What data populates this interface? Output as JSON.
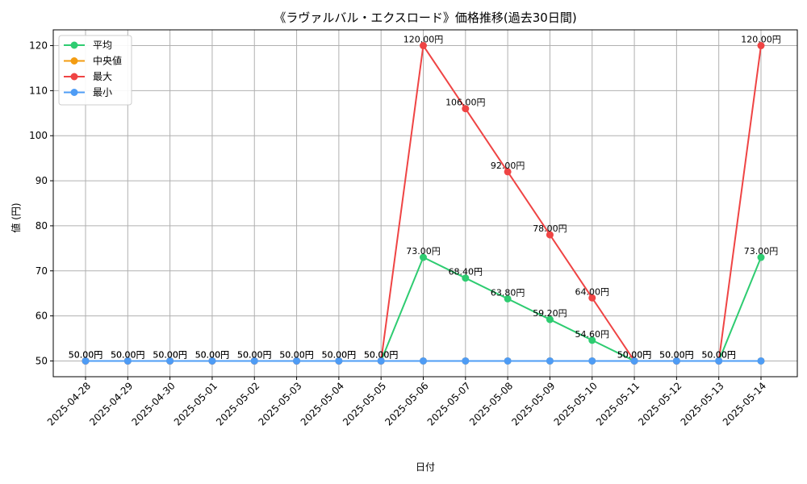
{
  "chart_data": {
    "type": "line",
    "title": "《ラヴァルバル・エクスロード》価格推移(過去30日間)",
    "xlabel": "日付",
    "ylabel": "値 (円)",
    "ylim": [
      46.5,
      123.5
    ],
    "yticks": [
      50,
      60,
      70,
      80,
      90,
      100,
      110,
      120
    ],
    "grid": true,
    "legend_position": "top-left",
    "value_label_suffix": "円",
    "categories": [
      "2025-04-28",
      "2025-04-29",
      "2025-04-30",
      "2025-05-01",
      "2025-05-02",
      "2025-05-03",
      "2025-05-04",
      "2025-05-05",
      "2025-05-06",
      "2025-05-07",
      "2025-05-08",
      "2025-05-09",
      "2025-05-10",
      "2025-05-11",
      "2025-05-12",
      "2025-05-13",
      "2025-05-14"
    ],
    "series": [
      {
        "name": "平均",
        "color": "#2ecc71",
        "values": [
          50,
          50,
          50,
          50,
          50,
          50,
          50,
          50,
          73,
          68.4,
          63.8,
          59.2,
          54.6,
          50,
          50,
          50,
          73
        ]
      },
      {
        "name": "中央値",
        "color": "#f39c12",
        "values": [
          50,
          50,
          50,
          50,
          50,
          50,
          50,
          50,
          50,
          50,
          50,
          50,
          50,
          50,
          50,
          50,
          50
        ]
      },
      {
        "name": "最大",
        "color": "#ef4444",
        "values": [
          50,
          50,
          50,
          50,
          50,
          50,
          50,
          50,
          120,
          106,
          92,
          78,
          64,
          50,
          50,
          50,
          120
        ]
      },
      {
        "name": "最小",
        "color": "#4e9cf5",
        "values": [
          50,
          50,
          50,
          50,
          50,
          50,
          50,
          50,
          50,
          50,
          50,
          50,
          50,
          50,
          50,
          50,
          50
        ]
      }
    ]
  }
}
